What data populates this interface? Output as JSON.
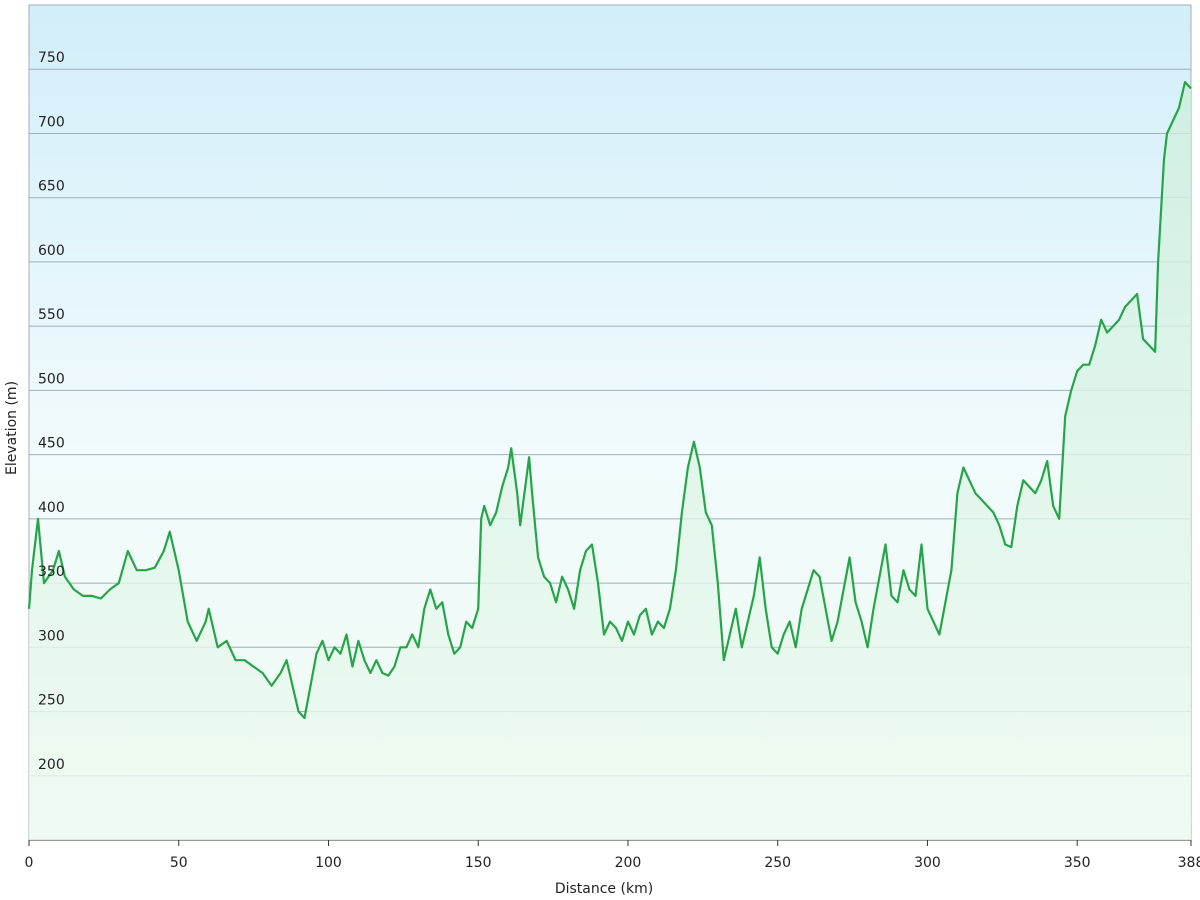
{
  "chart_data": {
    "type": "area",
    "x_label": "Distance  (km)",
    "y_label": "Elevation (m)",
    "series": [
      {
        "color": "#25a548",
        "x": [
          0,
          1,
          3,
          5,
          8,
          10,
          12,
          15,
          18,
          21,
          24,
          27,
          30,
          33,
          36,
          39,
          42,
          45,
          47,
          50,
          53,
          56,
          59,
          60,
          63,
          66,
          69,
          72,
          75,
          78,
          81,
          84,
          86,
          88,
          90,
          92,
          94,
          96,
          98,
          100,
          102,
          104,
          106,
          108,
          110,
          112,
          114,
          116,
          118,
          120,
          122,
          124,
          126,
          128,
          130,
          132,
          134,
          136,
          138,
          140,
          142,
          144,
          146,
          148,
          150,
          151,
          152,
          154,
          156,
          158,
          160,
          161,
          163,
          164,
          166,
          167,
          168,
          170,
          172,
          174,
          176,
          178,
          180,
          182,
          184,
          186,
          188,
          190,
          192,
          194,
          196,
          198,
          200,
          202,
          204,
          206,
          208,
          210,
          212,
          214,
          216,
          218,
          220,
          222,
          224,
          226,
          228,
          230,
          232,
          234,
          236,
          238,
          240,
          242,
          244,
          246,
          248,
          250,
          252,
          254,
          256,
          258,
          260,
          262,
          264,
          266,
          268,
          270,
          272,
          274,
          276,
          278,
          280,
          282,
          284,
          286,
          288,
          290,
          292,
          294,
          296,
          298,
          300,
          302,
          304,
          306,
          308,
          310,
          312,
          314,
          316,
          318,
          320,
          322,
          324,
          326,
          328,
          330,
          332,
          334,
          336,
          338,
          340,
          342,
          344,
          346,
          348,
          350,
          352,
          354,
          356,
          358,
          360,
          362,
          364,
          366,
          368,
          370,
          372,
          374,
          376,
          377,
          379,
          380,
          382,
          384,
          386,
          388
        ],
        "values": [
          330,
          360,
          400,
          350,
          360,
          375,
          355,
          345,
          340,
          340,
          338,
          345,
          350,
          375,
          360,
          360,
          362,
          375,
          390,
          360,
          320,
          305,
          320,
          330,
          300,
          305,
          290,
          290,
          285,
          280,
          270,
          280,
          290,
          270,
          250,
          245,
          270,
          295,
          305,
          290,
          300,
          295,
          310,
          285,
          305,
          290,
          280,
          290,
          280,
          278,
          285,
          300,
          300,
          310,
          300,
          330,
          345,
          330,
          335,
          310,
          295,
          300,
          320,
          315,
          330,
          400,
          410,
          395,
          405,
          425,
          440,
          455,
          420,
          395,
          430,
          448,
          420,
          370,
          355,
          350,
          335,
          355,
          345,
          330,
          360,
          375,
          380,
          350,
          310,
          320,
          315,
          305,
          320,
          310,
          325,
          330,
          310,
          320,
          315,
          330,
          360,
          405,
          440,
          460,
          440,
          405,
          395,
          350,
          290,
          310,
          330,
          300,
          320,
          340,
          370,
          330,
          300,
          295,
          310,
          320,
          300,
          330,
          345,
          360,
          355,
          330,
          305,
          320,
          345,
          370,
          335,
          320,
          300,
          330,
          355,
          380,
          340,
          335,
          360,
          345,
          340,
          380,
          330,
          320,
          310,
          335,
          360,
          420,
          440,
          430,
          420,
          415,
          410,
          405,
          395,
          380,
          378,
          410,
          430,
          425,
          420,
          430,
          445,
          410,
          400,
          480,
          500,
          515,
          520,
          520,
          535,
          555,
          545,
          550,
          555,
          565,
          570,
          575,
          540,
          535,
          530,
          600,
          680,
          700,
          710,
          720,
          740,
          735
        ]
      }
    ],
    "xlim": [
      0,
      388
    ],
    "ylim": [
      150,
      800
    ],
    "xticks": [
      0,
      50,
      100,
      150,
      200,
      250,
      300,
      350,
      388
    ],
    "yticks": [
      200,
      250,
      300,
      350,
      400,
      450,
      500,
      550,
      600,
      650,
      700,
      750
    ],
    "grid": true
  }
}
